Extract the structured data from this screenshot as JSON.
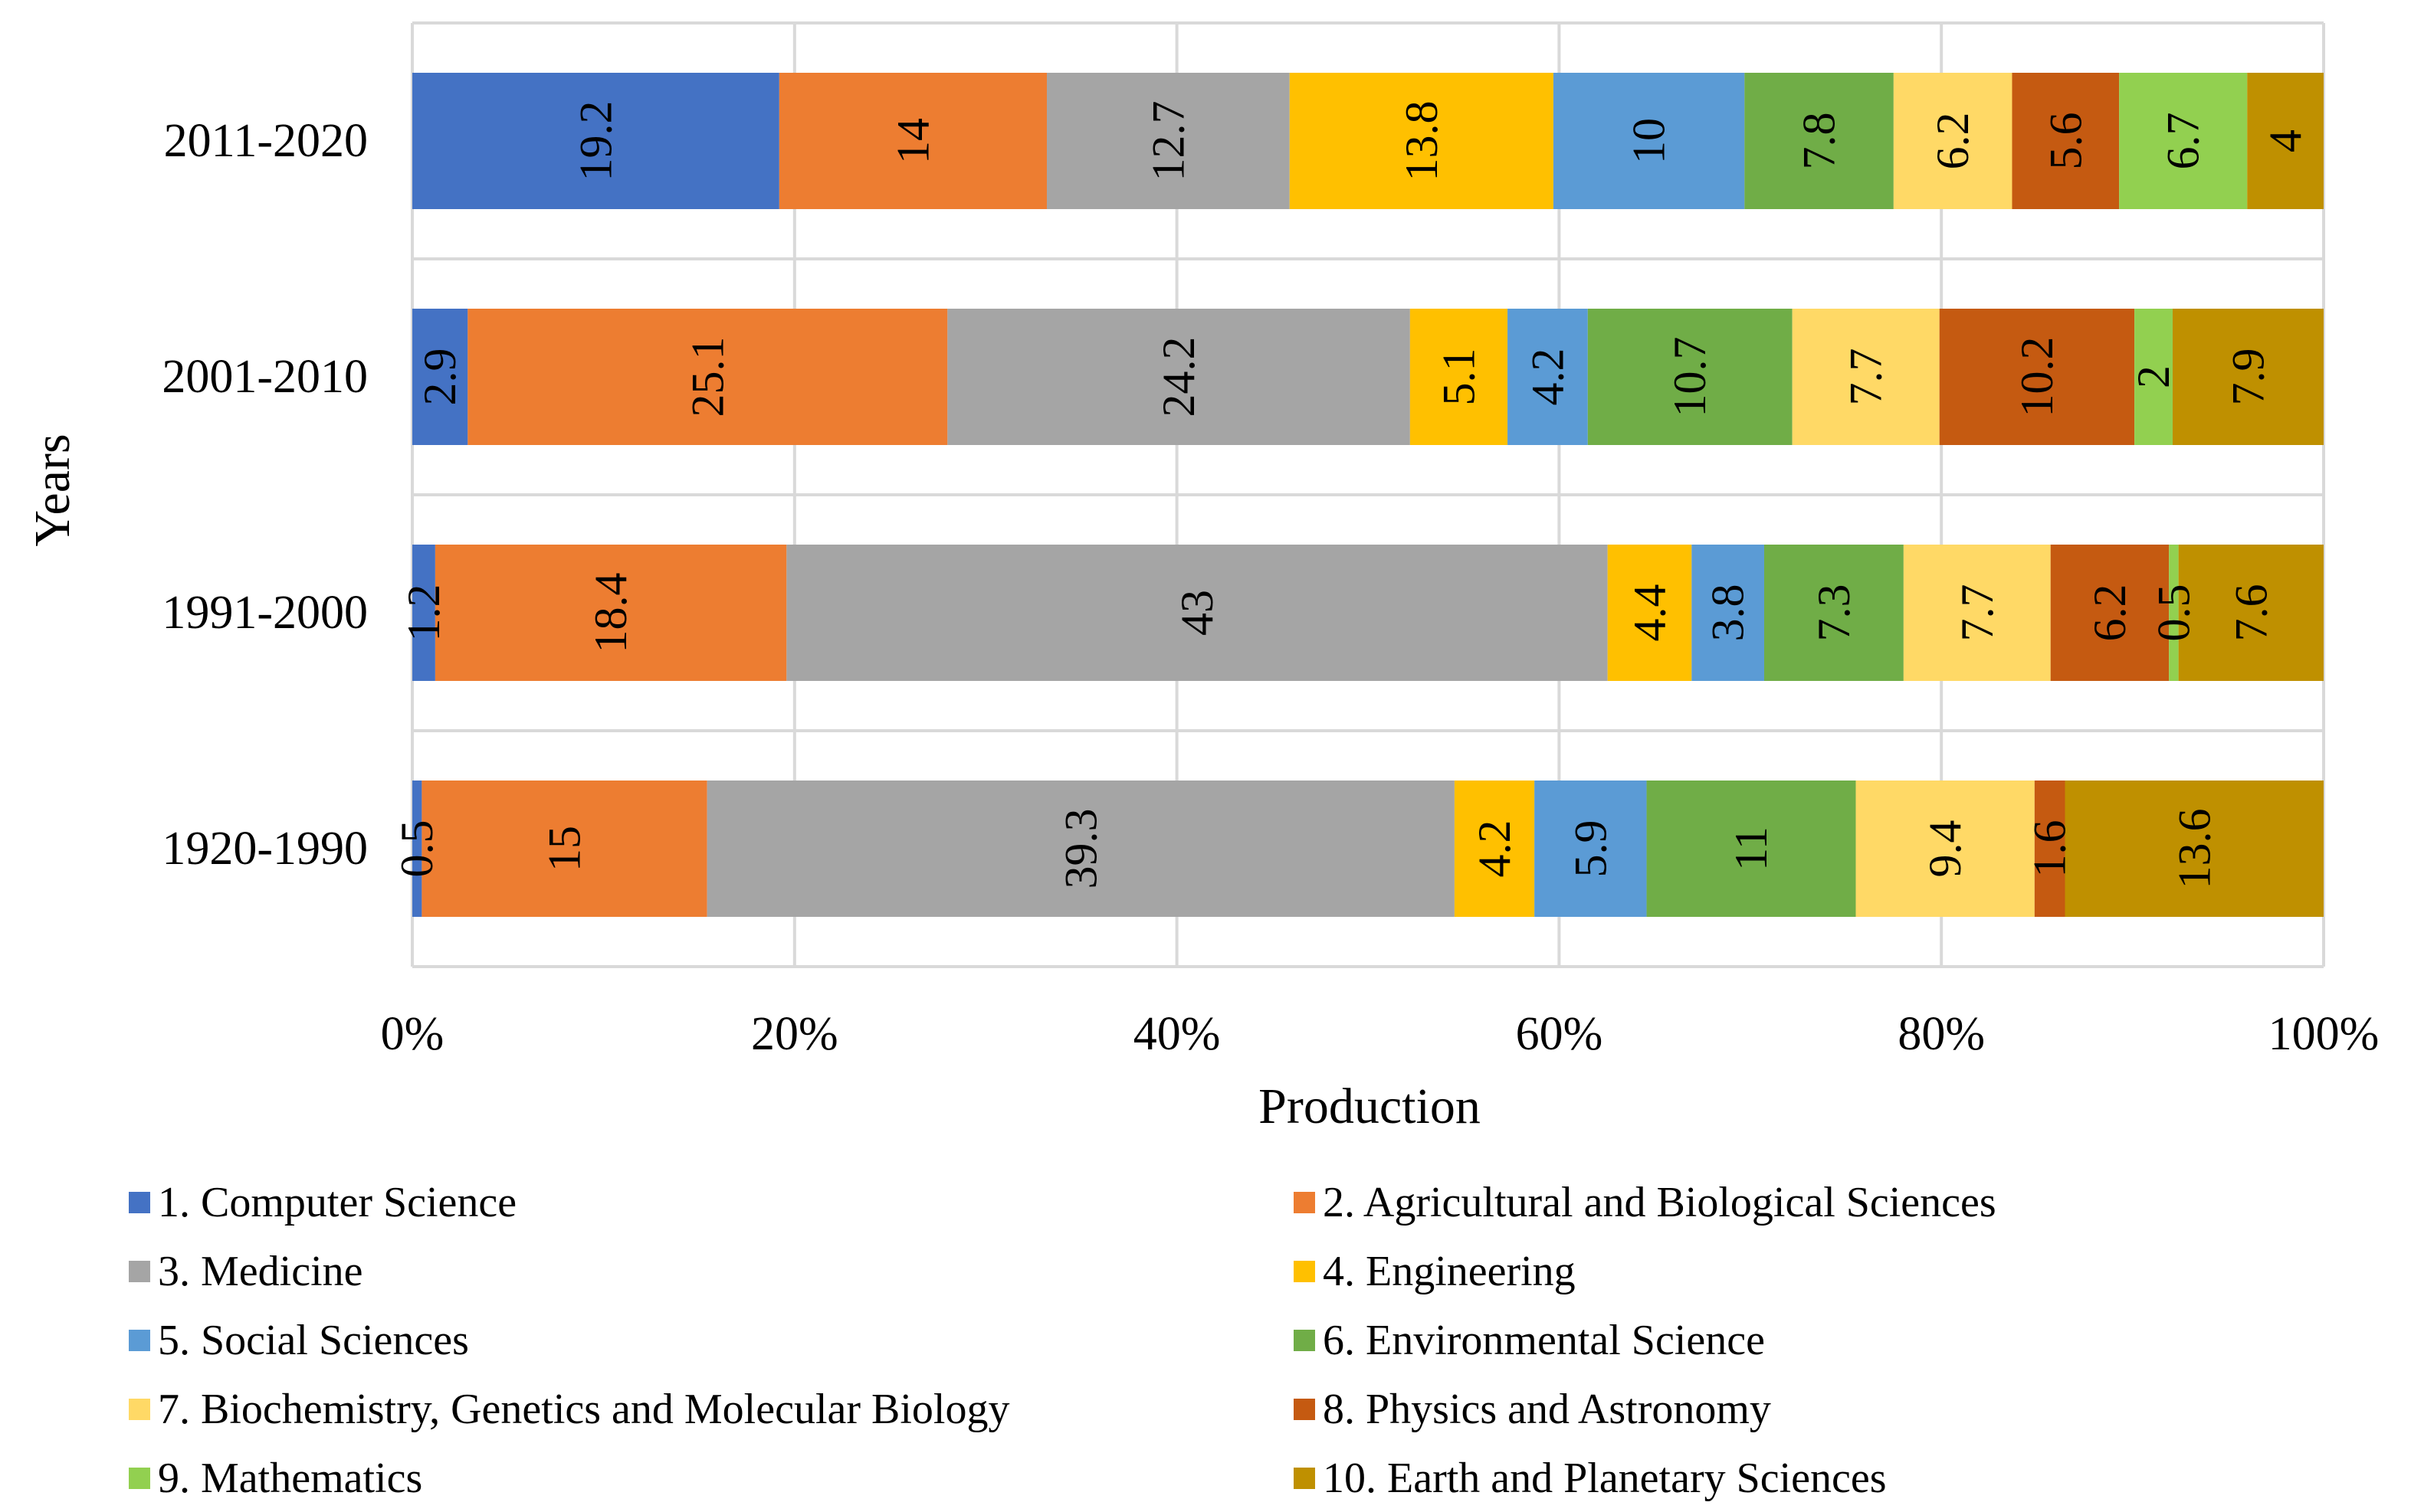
{
  "chart_data": {
    "type": "bar",
    "orientation": "horizontal",
    "stacking": "percent",
    "xlabel": "Production",
    "ylabel": "Years",
    "xlim": [
      0,
      100
    ],
    "xticks": [
      "0%",
      "20%",
      "40%",
      "60%",
      "80%",
      "100%"
    ],
    "grid": true,
    "legend_position": "bottom",
    "categories": [
      "2011-2020",
      "2001-2010",
      "1991-2000",
      "1920-1990"
    ],
    "series": [
      {
        "name": "1. Computer Science",
        "color": "#4472C4",
        "values": [
          19.2,
          2.9,
          1.2,
          0.5
        ]
      },
      {
        "name": "2. Agricultural and Biological Sciences",
        "color": "#ED7D31",
        "values": [
          14,
          25.1,
          18.4,
          15
        ]
      },
      {
        "name": "3. Medicine",
        "color": "#A5A5A5",
        "values": [
          12.7,
          24.2,
          43,
          39.3
        ]
      },
      {
        "name": "4. Engineering",
        "color": "#FFC000",
        "values": [
          13.8,
          5.1,
          4.4,
          4.2
        ]
      },
      {
        "name": "5. Social Sciences",
        "color": "#5B9BD5",
        "values": [
          10,
          4.2,
          3.8,
          5.9
        ]
      },
      {
        "name": "6. Environmental Science",
        "color": "#70AD47",
        "values": [
          7.8,
          10.7,
          7.3,
          11
        ]
      },
      {
        "name": "7. Biochemistry, Genetics and Molecular Biology",
        "color": "#FFD966",
        "values": [
          6.2,
          7.7,
          7.7,
          9.4
        ]
      },
      {
        "name": "8. Physics and Astronomy",
        "color": "#C55A11",
        "values": [
          5.6,
          10.2,
          6.2,
          1.6
        ]
      },
      {
        "name": "9. Mathematics",
        "color": "#92D050",
        "values": [
          6.7,
          2,
          0.5,
          0
        ]
      },
      {
        "name": "10. Earth and Planetary Sciences",
        "color": "#BF9000",
        "values": [
          4,
          7.9,
          7.6,
          13.6
        ]
      }
    ]
  }
}
